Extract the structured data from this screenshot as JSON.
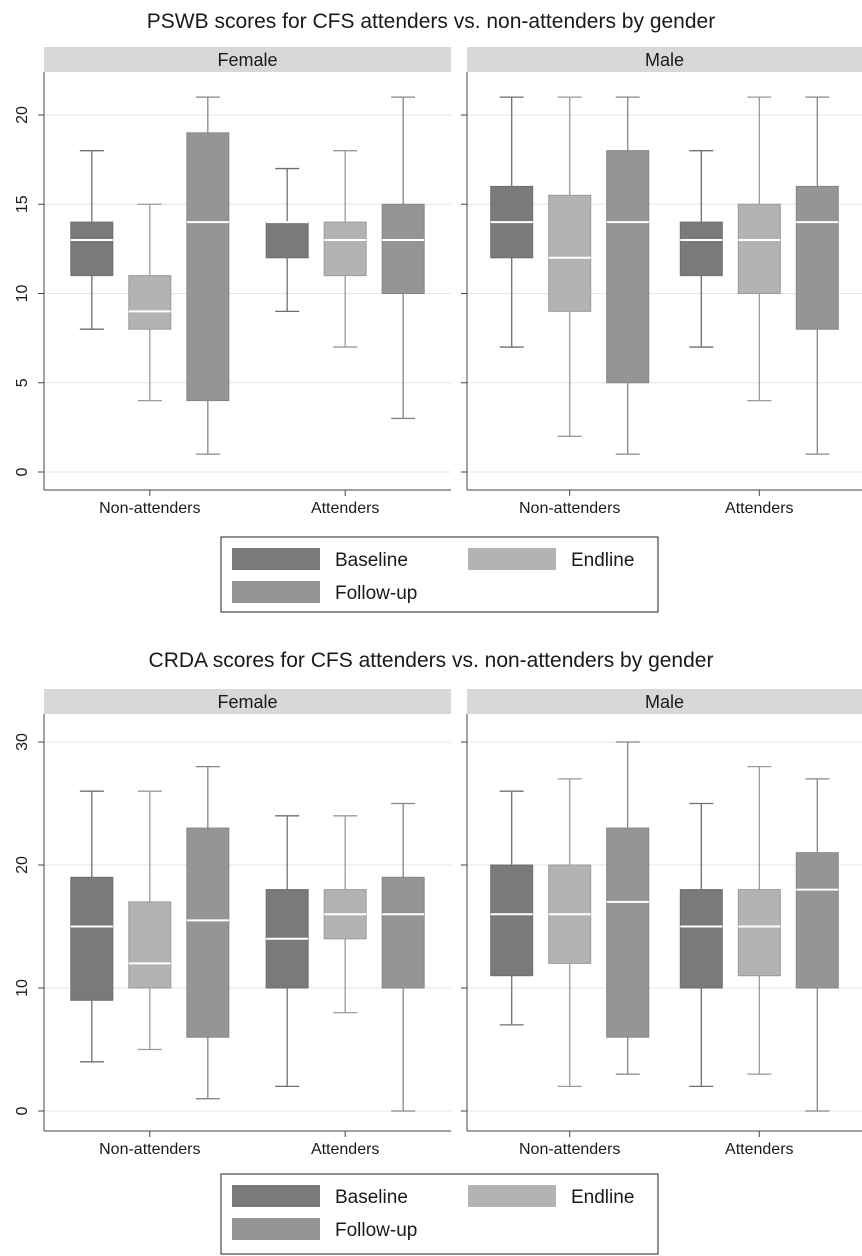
{
  "chart_data": [
    {
      "type": "box",
      "title": "PSWB scores for CFS attenders vs. non-attenders by gender",
      "ylim": [
        -1,
        22
      ],
      "yticks": [
        0,
        5,
        10,
        15,
        20
      ],
      "grid": true,
      "categories": [
        "Non-attenders",
        "Attenders"
      ],
      "legend": {
        "position": "bottom",
        "entries": [
          {
            "label": "Baseline",
            "color": "#7a7a7c"
          },
          {
            "label": "Endline",
            "color": "#b3b3b5"
          },
          {
            "label": "Follow-up",
            "color": "#959597"
          }
        ]
      },
      "panels": [
        {
          "label": "Female",
          "groups": [
            {
              "category": "Non-attenders",
              "boxes": [
                {
                  "series": "Baseline",
                  "min": 8,
                  "q1": 11,
                  "median": 13,
                  "q3": 14,
                  "max": 18
                },
                {
                  "series": "Endline",
                  "min": 4,
                  "q1": 8,
                  "median": 9,
                  "q3": 11,
                  "max": 15
                },
                {
                  "series": "Follow-up",
                  "min": 1,
                  "q1": 4,
                  "median": 14,
                  "q3": 19,
                  "max": 21
                }
              ]
            },
            {
              "category": "Attenders",
              "boxes": [
                {
                  "series": "Baseline",
                  "min": 9,
                  "q1": 12,
                  "median": 14,
                  "q3": 14,
                  "max": 17
                },
                {
                  "series": "Endline",
                  "min": 7,
                  "q1": 11,
                  "median": 13,
                  "q3": 14,
                  "max": 18
                },
                {
                  "series": "Follow-up",
                  "min": 3,
                  "q1": 10,
                  "median": 13,
                  "q3": 15,
                  "max": 21
                }
              ]
            }
          ]
        },
        {
          "label": "Male",
          "groups": [
            {
              "category": "Non-attenders",
              "boxes": [
                {
                  "series": "Baseline",
                  "min": 7,
                  "q1": 12,
                  "median": 14,
                  "q3": 16,
                  "max": 21
                },
                {
                  "series": "Endline",
                  "min": 2,
                  "q1": 9,
                  "median": 12,
                  "q3": 15.5,
                  "max": 21
                },
                {
                  "series": "Follow-up",
                  "min": 1,
                  "q1": 5,
                  "median": 14,
                  "q3": 18,
                  "max": 21
                }
              ]
            },
            {
              "category": "Attenders",
              "boxes": [
                {
                  "series": "Baseline",
                  "min": 7,
                  "q1": 11,
                  "median": 13,
                  "q3": 14,
                  "max": 18
                },
                {
                  "series": "Endline",
                  "min": 4,
                  "q1": 10,
                  "median": 13,
                  "q3": 15,
                  "max": 21
                },
                {
                  "series": "Follow-up",
                  "min": 1,
                  "q1": 8,
                  "median": 14,
                  "q3": 16,
                  "max": 21
                }
              ]
            }
          ]
        }
      ]
    },
    {
      "type": "box",
      "title": "CRDA scores for CFS attenders vs. non-attenders by gender",
      "ylim": [
        -1.5,
        32
      ],
      "yticks": [
        0,
        10,
        20,
        30
      ],
      "grid": true,
      "categories": [
        "Non-attenders",
        "Attenders"
      ],
      "legend": {
        "position": "bottom",
        "entries": [
          {
            "label": "Baseline",
            "color": "#7a7a7c"
          },
          {
            "label": "Endline",
            "color": "#b3b3b5"
          },
          {
            "label": "Follow-up",
            "color": "#959597"
          }
        ]
      },
      "panels": [
        {
          "label": "Female",
          "groups": [
            {
              "category": "Non-attenders",
              "boxes": [
                {
                  "series": "Baseline",
                  "min": 4,
                  "q1": 9,
                  "median": 15,
                  "q3": 19,
                  "max": 26
                },
                {
                  "series": "Endline",
                  "min": 5,
                  "q1": 10,
                  "median": 12,
                  "q3": 17,
                  "max": 26
                },
                {
                  "series": "Follow-up",
                  "min": 1,
                  "q1": 6,
                  "median": 15.5,
                  "q3": 23,
                  "max": 28
                }
              ]
            },
            {
              "category": "Attenders",
              "boxes": [
                {
                  "series": "Baseline",
                  "min": 2,
                  "q1": 10,
                  "median": 14,
                  "q3": 18,
                  "max": 24
                },
                {
                  "series": "Endline",
                  "min": 8,
                  "q1": 14,
                  "median": 16,
                  "q3": 18,
                  "max": 24
                },
                {
                  "series": "Follow-up",
                  "min": 0,
                  "q1": 10,
                  "median": 16,
                  "q3": 19,
                  "max": 25
                }
              ]
            }
          ]
        },
        {
          "label": "Male",
          "groups": [
            {
              "category": "Non-attenders",
              "boxes": [
                {
                  "series": "Baseline",
                  "min": 7,
                  "q1": 11,
                  "median": 16,
                  "q3": 20,
                  "max": 26
                },
                {
                  "series": "Endline",
                  "min": 2,
                  "q1": 12,
                  "median": 16,
                  "q3": 20,
                  "max": 27
                },
                {
                  "series": "Follow-up",
                  "min": 3,
                  "q1": 6,
                  "median": 17,
                  "q3": 23,
                  "max": 30
                }
              ]
            },
            {
              "category": "Attenders",
              "boxes": [
                {
                  "series": "Baseline",
                  "min": 2,
                  "q1": 10,
                  "median": 15,
                  "q3": 18,
                  "max": 25
                },
                {
                  "series": "Endline",
                  "min": 3,
                  "q1": 11,
                  "median": 15,
                  "q3": 18,
                  "max": 28
                },
                {
                  "series": "Follow-up",
                  "min": 0,
                  "q1": 10,
                  "median": 18,
                  "q3": 21,
                  "max": 27
                }
              ]
            }
          ]
        }
      ]
    }
  ]
}
